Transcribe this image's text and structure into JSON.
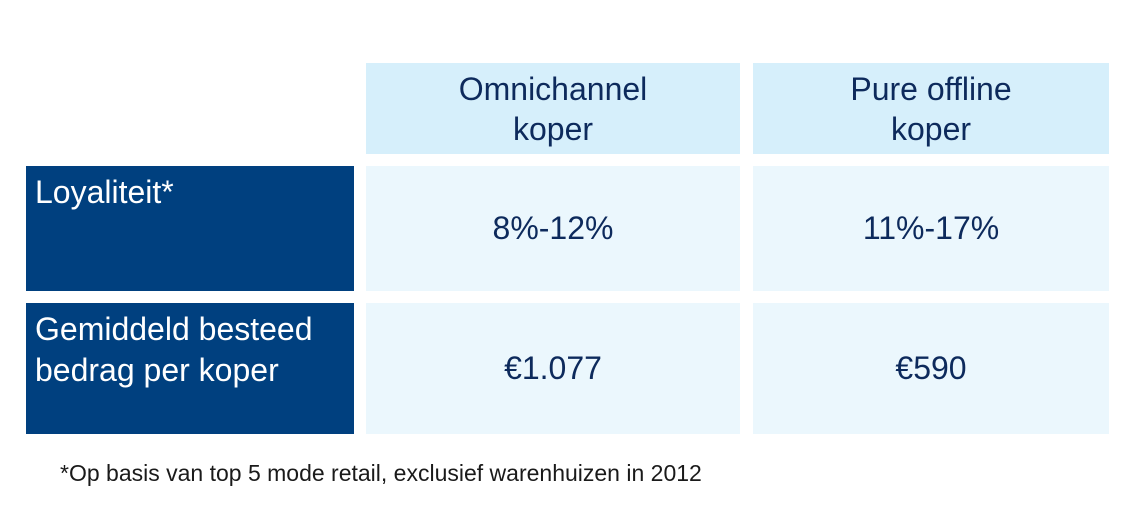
{
  "table": {
    "columns": [
      {
        "label": "Omnichannel\nkoper"
      },
      {
        "label": "Pure offline\nkoper"
      }
    ],
    "rows": [
      {
        "label": "Loyaliteit*",
        "values": [
          "8%-12%",
          "11%-17%"
        ]
      },
      {
        "label": "Gemiddeld besteed\nbedrag per koper",
        "values": [
          "€1.077",
          "€590"
        ]
      }
    ]
  },
  "footnote": "*Op basis van top 5 mode retail, exclusief warenhuizen in 2012",
  "colors": {
    "row_header_bg": "#00407f",
    "column_header_bg": "#d6effb",
    "value_cell_bg": "#ebf7fd",
    "text_dark": "#0d2a5c"
  }
}
